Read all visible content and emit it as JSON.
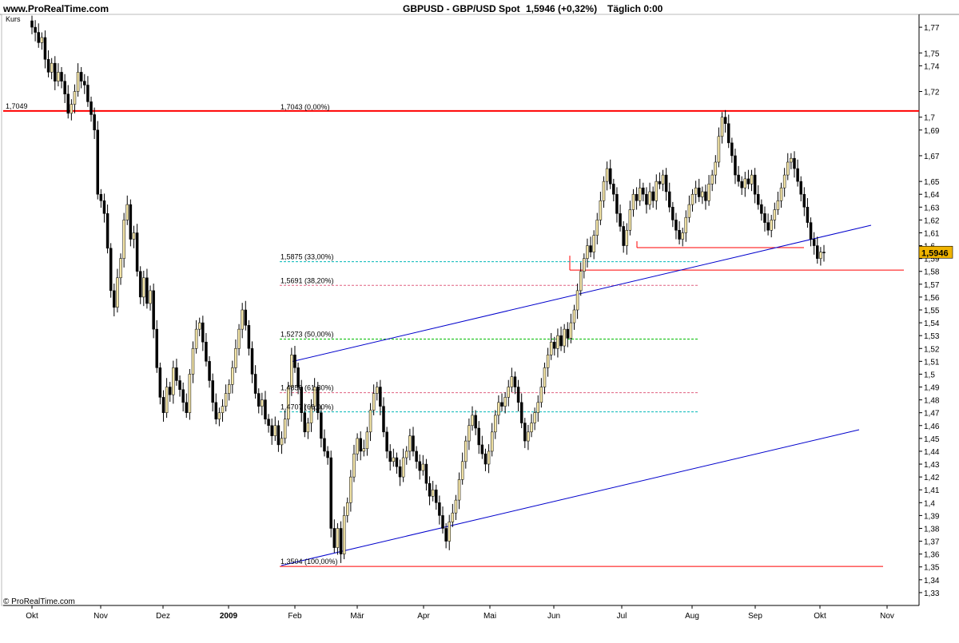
{
  "header": {
    "site": "www.ProRealTime.com",
    "title": "GBPUSD - GBP/USD Spot",
    "price_info": "1,5946 (+0,32%)",
    "timeframe": "Täglich  0:00"
  },
  "panel_label": "Kurs",
  "copyright": "© ProRealTime.com",
  "last_price_tag": "1,5946",
  "colors": {
    "background": "#ffffff",
    "resistance_line": "#ff0000",
    "trend_line": "#0000cc",
    "candle_up": "#f5e6a8",
    "candle_down": "#000000",
    "price_tag": "#f0b400",
    "fib_green": "#00bb00",
    "fib_pink": "#e06080",
    "fib_cyan": "#00b8b8"
  },
  "chart_data": {
    "type": "candlestick",
    "x_axis": {
      "labels": [
        "Okt",
        "Nov",
        "Dez",
        "2009",
        "Feb",
        "Mär",
        "Apr",
        "Mai",
        "Jun",
        "Jul",
        "Aug",
        "Sep",
        "Okt",
        "Nov"
      ]
    },
    "y_axis": {
      "range": [
        1.32,
        1.78
      ],
      "ticks": [
        "1,77",
        "1,75",
        "1,74",
        "1,72",
        "1,7",
        "1,69",
        "1,67",
        "1,65",
        "1,64",
        "1,63",
        "1,62",
        "1,61",
        "1,6",
        "1,59",
        "1,58",
        "1,57",
        "1,56",
        "1,55",
        "1,54",
        "1,53",
        "1,52",
        "1,51",
        "1,5",
        "1,49",
        "1,48",
        "1,47",
        "1,46",
        "1,45",
        "1,44",
        "1,43",
        "1,42",
        "1,41",
        "1,4",
        "1,39",
        "1,38",
        "1,37",
        "1,36",
        "1,35",
        "1,34",
        "1,33"
      ]
    },
    "last_close": 1.5946,
    "horizontal_lines": [
      {
        "label": "1,7049",
        "value": 1.7049
      },
      {
        "label": "",
        "value": 1.5985
      },
      {
        "label": "",
        "value": 1.581
      },
      {
        "label": "",
        "value": 1.3504
      }
    ],
    "fibonacci_levels": [
      {
        "label": "1,7043 (0,00%)",
        "value": 1.7043
      },
      {
        "label": "1,5875 (33,00%)",
        "value": 1.5875
      },
      {
        "label": "1,5691 (38,20%)",
        "value": 1.5691
      },
      {
        "label": "1,5273 (50,00%)",
        "value": 1.5273
      },
      {
        "label": "1,4856 (61,80%)",
        "value": 1.4856
      },
      {
        "label": "1,4707 (66,00%)",
        "value": 1.4707
      },
      {
        "label": "1,3504 (100,00%)",
        "value": 1.3504
      }
    ],
    "close_series": [
      1.77,
      1.766,
      1.758,
      1.762,
      1.745,
      1.735,
      1.742,
      1.728,
      1.735,
      1.728,
      1.718,
      1.703,
      1.71,
      1.72,
      1.735,
      1.728,
      1.725,
      1.712,
      1.702,
      1.69,
      1.64,
      1.635,
      1.625,
      1.598,
      1.565,
      1.552,
      1.575,
      1.59,
      1.62,
      1.632,
      1.605,
      1.61,
      1.58,
      1.56,
      1.575,
      1.555,
      1.565,
      1.535,
      1.505,
      1.482,
      1.47,
      1.49,
      1.484,
      1.505,
      1.495,
      1.488,
      1.478,
      1.47,
      1.5,
      1.52,
      1.535,
      1.54,
      1.525,
      1.51,
      1.495,
      1.478,
      1.465,
      1.47,
      1.475,
      1.485,
      1.492,
      1.505,
      1.52,
      1.535,
      1.55,
      1.538,
      1.52,
      1.5,
      1.485,
      1.475,
      1.48,
      1.465,
      1.46,
      1.452,
      1.46,
      1.445,
      1.45,
      1.465,
      1.49,
      1.515,
      1.505,
      1.49,
      1.47,
      1.455,
      1.462,
      1.475,
      1.49,
      1.47,
      1.45,
      1.44,
      1.435,
      1.38,
      1.365,
      1.38,
      1.36,
      1.39,
      1.4,
      1.42,
      1.438,
      1.45,
      1.44,
      1.442,
      1.455,
      1.472,
      1.485,
      1.49,
      1.475,
      1.455,
      1.44,
      1.432,
      1.435,
      1.428,
      1.42,
      1.435,
      1.44,
      1.452,
      1.44,
      1.432,
      1.425,
      1.43,
      1.415,
      1.405,
      1.41,
      1.4,
      1.39,
      1.38,
      1.37,
      1.385,
      1.392,
      1.402,
      1.418,
      1.432,
      1.448,
      1.46,
      1.468,
      1.458,
      1.445,
      1.438,
      1.43,
      1.44,
      1.455,
      1.468,
      1.478,
      1.475,
      1.482,
      1.49,
      1.498,
      1.49,
      1.478,
      1.462,
      1.448,
      1.455,
      1.462,
      1.47,
      1.478,
      1.49,
      1.505,
      1.515,
      1.525,
      1.52,
      1.53,
      1.522,
      1.535,
      1.528,
      1.54,
      1.55,
      1.565,
      1.58,
      1.59,
      1.6,
      1.595,
      1.608,
      1.62,
      1.635,
      1.65,
      1.66,
      1.648,
      1.64,
      1.625,
      1.615,
      1.6,
      1.612,
      1.628,
      1.64,
      1.635,
      1.645,
      1.64,
      1.632,
      1.642,
      1.635,
      1.65,
      1.648,
      1.655,
      1.642,
      1.63,
      1.62,
      1.612,
      1.605,
      1.61,
      1.622,
      1.632,
      1.64,
      1.645,
      1.638,
      1.642,
      1.635,
      1.648,
      1.655,
      1.665,
      1.685,
      1.7,
      1.695,
      1.68,
      1.67,
      1.655,
      1.65,
      1.645,
      1.652,
      1.648,
      1.655,
      1.64,
      1.632,
      1.625,
      1.618,
      1.612,
      1.62,
      1.628,
      1.635,
      1.645,
      1.655,
      1.665,
      1.668,
      1.66,
      1.65,
      1.64,
      1.63,
      1.618,
      1.605,
      1.6,
      1.59,
      1.595,
      1.5946
    ]
  }
}
